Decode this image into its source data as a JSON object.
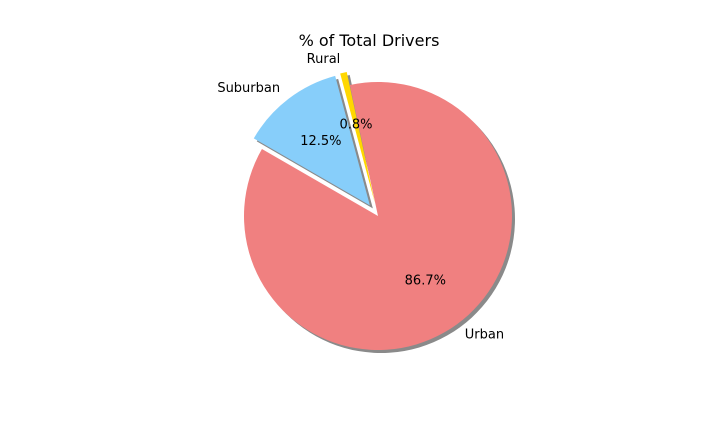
{
  "chart_data": {
    "type": "pie",
    "title": "% of Total Drivers",
    "labels": [
      "Urban",
      "Rural",
      "Suburban"
    ],
    "values": [
      86.7,
      0.8,
      12.5
    ],
    "percent_labels": [
      "86.7%",
      "0.8%",
      "12.5%"
    ],
    "colors": [
      "#f08080",
      "#ffd700",
      "#87cefa"
    ],
    "explode": [
      0,
      0.1,
      0.1
    ],
    "shadow": true,
    "start_angle_deg": 150,
    "legend": "none"
  }
}
